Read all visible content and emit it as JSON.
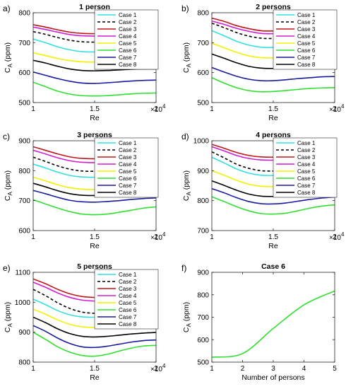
{
  "figure": {
    "legend_label": "Case",
    "case_colors": [
      "#33e0e0",
      "#000000",
      "#c0161a",
      "#d01ed0",
      "#f4f000",
      "#2fe02f",
      "#1a1a9e",
      "#000000"
    ],
    "case_dashed": [
      false,
      true,
      false,
      false,
      false,
      false,
      false,
      false
    ]
  },
  "chart_data": [
    {
      "type": "line",
      "label": "a)",
      "title": "1 person",
      "xlabel": "Re",
      "ylabel": "C",
      "ylabel_sub": "A",
      "ylabel_unit": " (ppm)",
      "xlim": [
        10000,
        20000
      ],
      "ylim": [
        500,
        800
      ],
      "xticks": [
        10000,
        15000,
        20000
      ],
      "xtick_labels": [
        "1",
        "1.5",
        "2"
      ],
      "x_exponent": "×10^4",
      "yticks": [
        500,
        600,
        700,
        800
      ],
      "legend_location": "top-right",
      "grid": false,
      "x": [
        10000,
        11000,
        12000,
        13000,
        14000,
        15000,
        16000,
        17000,
        18000,
        19000,
        20000
      ],
      "series": [
        {
          "name": "Case 1",
          "values": [
            712,
            700,
            686,
            676,
            670,
            669,
            671,
            675,
            678,
            680,
            681
          ]
        },
        {
          "name": "Case 2",
          "values": [
            737,
            728,
            717,
            708,
            703,
            702,
            704,
            707,
            709,
            710,
            710
          ]
        },
        {
          "name": "Case 3",
          "values": [
            760,
            752,
            743,
            735,
            731,
            730,
            731,
            734,
            736,
            737,
            738
          ]
        },
        {
          "name": "Case 4",
          "values": [
            752,
            744,
            735,
            727,
            723,
            722,
            723,
            726,
            728,
            729,
            730
          ]
        },
        {
          "name": "Case 5",
          "values": [
            666,
            657,
            647,
            640,
            636,
            635,
            636,
            638,
            640,
            641,
            641
          ]
        },
        {
          "name": "Case 6",
          "values": [
            568,
            553,
            538,
            528,
            523,
            522,
            523,
            526,
            529,
            531,
            532
          ]
        },
        {
          "name": "Case 7",
          "values": [
            602,
            591,
            580,
            571,
            565,
            564,
            566,
            569,
            572,
            574,
            575
          ]
        },
        {
          "name": "Case 8",
          "values": [
            641,
            632,
            621,
            612,
            607,
            606,
            607,
            609,
            611,
            612,
            612
          ]
        }
      ]
    },
    {
      "type": "line",
      "label": "b)",
      "title": "2 persons",
      "xlabel": "Re",
      "ylabel": "C",
      "ylabel_sub": "A",
      "ylabel_unit": " (ppm)",
      "xlim": [
        10000,
        20000
      ],
      "ylim": [
        500,
        800
      ],
      "xticks": [
        10000,
        15000,
        20000
      ],
      "xtick_labels": [
        "1",
        "1.5",
        "2"
      ],
      "x_exponent": "×10^4",
      "yticks": [
        500,
        600,
        700,
        800
      ],
      "legend_location": "top-right",
      "grid": false,
      "x": [
        10000,
        11000,
        12000,
        13000,
        14000,
        15000,
        16000,
        17000,
        18000,
        19000,
        20000
      ],
      "series": [
        {
          "name": "Case 1",
          "values": [
            740,
            723,
            705,
            692,
            685,
            684,
            686,
            688,
            690,
            691,
            691
          ]
        },
        {
          "name": "Case 2",
          "values": [
            765,
            750,
            734,
            722,
            715,
            714,
            716,
            718,
            719,
            720,
            720
          ]
        },
        {
          "name": "Case 3",
          "values": [
            782,
            771,
            757,
            747,
            740,
            739,
            741,
            744,
            746,
            747,
            748
          ]
        },
        {
          "name": "Case 4",
          "values": [
            772,
            761,
            748,
            738,
            731,
            730,
            732,
            735,
            737,
            738,
            738
          ]
        },
        {
          "name": "Case 5",
          "values": [
            698,
            683,
            668,
            656,
            650,
            649,
            650,
            652,
            654,
            655,
            655
          ]
        },
        {
          "name": "Case 6",
          "values": [
            583,
            565,
            550,
            540,
            536,
            537,
            540,
            544,
            547,
            549,
            550
          ]
        },
        {
          "name": "Case 7",
          "values": [
            617,
            602,
            588,
            578,
            573,
            573,
            576,
            580,
            583,
            586,
            587
          ]
        },
        {
          "name": "Case 8",
          "values": [
            662,
            648,
            633,
            621,
            615,
            614,
            616,
            619,
            621,
            623,
            624
          ]
        }
      ]
    },
    {
      "type": "line",
      "label": "c)",
      "title": "3 persons",
      "xlabel": "Re",
      "ylabel": "C",
      "ylabel_sub": "A",
      "ylabel_unit": " (ppm)",
      "xlim": [
        10000,
        20000
      ],
      "ylim": [
        600,
        900
      ],
      "xticks": [
        10000,
        15000,
        20000
      ],
      "xtick_labels": [
        "1",
        "1.5",
        "2"
      ],
      "x_exponent": "×10^4",
      "yticks": [
        600,
        700,
        800,
        900
      ],
      "legend_location": "top-right",
      "grid": false,
      "x": [
        10000,
        11000,
        12000,
        13000,
        14000,
        15000,
        16000,
        17000,
        18000,
        19000,
        20000
      ],
      "series": [
        {
          "name": "Case 1",
          "values": [
            822,
            809,
            795,
            784,
            779,
            778,
            780,
            783,
            786,
            788,
            789
          ]
        },
        {
          "name": "Case 2",
          "values": [
            845,
            831,
            816,
            805,
            799,
            798,
            800,
            803,
            805,
            806,
            807
          ]
        },
        {
          "name": "Case 3",
          "values": [
            880,
            868,
            856,
            846,
            841,
            840,
            842,
            844,
            846,
            847,
            847
          ]
        },
        {
          "name": "Case 4",
          "values": [
            868,
            856,
            843,
            833,
            828,
            827,
            829,
            831,
            833,
            834,
            834
          ]
        },
        {
          "name": "Case 5",
          "values": [
            778,
            766,
            753,
            743,
            738,
            737,
            738,
            741,
            743,
            744,
            745
          ]
        },
        {
          "name": "Case 6",
          "values": [
            703,
            689,
            675,
            663,
            655,
            653,
            655,
            661,
            668,
            675,
            679
          ]
        },
        {
          "name": "Case 7",
          "values": [
            734,
            723,
            711,
            701,
            696,
            695,
            697,
            700,
            704,
            707,
            709
          ]
        },
        {
          "name": "Case 8",
          "values": [
            758,
            746,
            733,
            723,
            718,
            717,
            718,
            721,
            723,
            725,
            726
          ]
        }
      ]
    },
    {
      "type": "line",
      "label": "d)",
      "title": "4 persons",
      "xlabel": "Re",
      "ylabel": "C",
      "ylabel_sub": "A",
      "ylabel_unit": " (ppm)",
      "xlim": [
        10000,
        20000
      ],
      "ylim": [
        700,
        1000
      ],
      "xticks": [
        10000,
        15000,
        20000
      ],
      "xtick_labels": [
        "1",
        "1.5",
        "2"
      ],
      "x_exponent": "×10^4",
      "yticks": [
        700,
        800,
        900,
        1000
      ],
      "legend_location": "top-right",
      "grid": false,
      "x": [
        10000,
        11000,
        12000,
        13000,
        14000,
        15000,
        16000,
        17000,
        18000,
        19000,
        20000
      ],
      "series": [
        {
          "name": "Case 1",
          "values": [
            945,
            926,
            906,
            892,
            885,
            884,
            885,
            887,
            889,
            890,
            890
          ]
        },
        {
          "name": "Case 2",
          "values": [
            963,
            943,
            922,
            908,
            900,
            899,
            900,
            902,
            903,
            904,
            904
          ]
        },
        {
          "name": "Case 3",
          "values": [
            988,
            975,
            961,
            951,
            946,
            945,
            946,
            946,
            946,
            946,
            946
          ]
        },
        {
          "name": "Case 4",
          "values": [
            980,
            966,
            951,
            941,
            936,
            935,
            936,
            936,
            936,
            936,
            936
          ]
        },
        {
          "name": "Case 5",
          "values": [
            900,
            885,
            868,
            855,
            848,
            847,
            848,
            849,
            850,
            851,
            851
          ]
        },
        {
          "name": "Case 6",
          "values": [
            813,
            797,
            780,
            766,
            757,
            755,
            758,
            766,
            775,
            782,
            786
          ]
        },
        {
          "name": "Case 7",
          "values": [
            840,
            826,
            810,
            797,
            790,
            789,
            792,
            798,
            804,
            809,
            812
          ]
        },
        {
          "name": "Case 8",
          "values": [
            866,
            851,
            835,
            822,
            815,
            814,
            816,
            820,
            823,
            826,
            828
          ]
        }
      ]
    },
    {
      "type": "line",
      "label": "e)",
      "title": "5 persons",
      "xlabel": "Re",
      "ylabel": "C",
      "ylabel_sub": "A",
      "ylabel_unit": " (ppm)",
      "xlim": [
        10000,
        20000
      ],
      "ylim": [
        800,
        1100
      ],
      "xticks": [
        10000,
        15000,
        20000
      ],
      "xtick_labels": [
        "1",
        "1.5",
        "2"
      ],
      "x_exponent": "×10^4",
      "yticks": [
        800,
        900,
        1000,
        1100
      ],
      "legend_location": "top-right",
      "grid": false,
      "x": [
        10000,
        11000,
        12000,
        13000,
        14000,
        15000,
        16000,
        17000,
        18000,
        19000,
        20000
      ],
      "series": [
        {
          "name": "Case 1",
          "values": [
            1010,
            992,
            972,
            958,
            951,
            950,
            951,
            953,
            955,
            956,
            957
          ]
        },
        {
          "name": "Case 2",
          "values": [
            1043,
            1022,
            998,
            979,
            967,
            963,
            963,
            963,
            963,
            963,
            963
          ]
        },
        {
          "name": "Case 3",
          "values": [
            1078,
            1062,
            1043,
            1028,
            1019,
            1016,
            1015,
            1015,
            1015,
            1015,
            1015
          ]
        },
        {
          "name": "Case 4",
          "values": [
            1067,
            1050,
            1031,
            1016,
            1007,
            1004,
            1003,
            1003,
            1003,
            1003,
            1003
          ]
        },
        {
          "name": "Case 5",
          "values": [
            977,
            960,
            941,
            926,
            918,
            916,
            917,
            918,
            919,
            920,
            920
          ]
        },
        {
          "name": "Case 6",
          "values": [
            900,
            876,
            851,
            833,
            822,
            820,
            826,
            837,
            847,
            854,
            856
          ]
        },
        {
          "name": "Case 7",
          "values": [
            922,
            903,
            880,
            862,
            851,
            849,
            853,
            860,
            867,
            872,
            874
          ]
        },
        {
          "name": "Case 8",
          "values": [
            950,
            932,
            911,
            895,
            886,
            884,
            886,
            890,
            894,
            897,
            899
          ]
        }
      ]
    },
    {
      "type": "line",
      "label": "f)",
      "title": "Case 6",
      "xlabel": "Number of persons",
      "ylabel": "C",
      "ylabel_sub": "A",
      "ylabel_unit": " (ppm)",
      "xlim": [
        1,
        5
      ],
      "ylim": [
        500,
        900
      ],
      "xticks": [
        1,
        2,
        3,
        4,
        5
      ],
      "xtick_labels": [
        "1",
        "2",
        "3",
        "4",
        "5"
      ],
      "x_exponent": "",
      "yticks": [
        500,
        600,
        700,
        800,
        900
      ],
      "grid": false,
      "x": [
        1,
        2,
        3,
        4,
        5
      ],
      "series": [
        {
          "values": [
            522,
            538,
            650,
            755,
            817
          ],
          "color": "#2fe02f"
        }
      ]
    }
  ]
}
